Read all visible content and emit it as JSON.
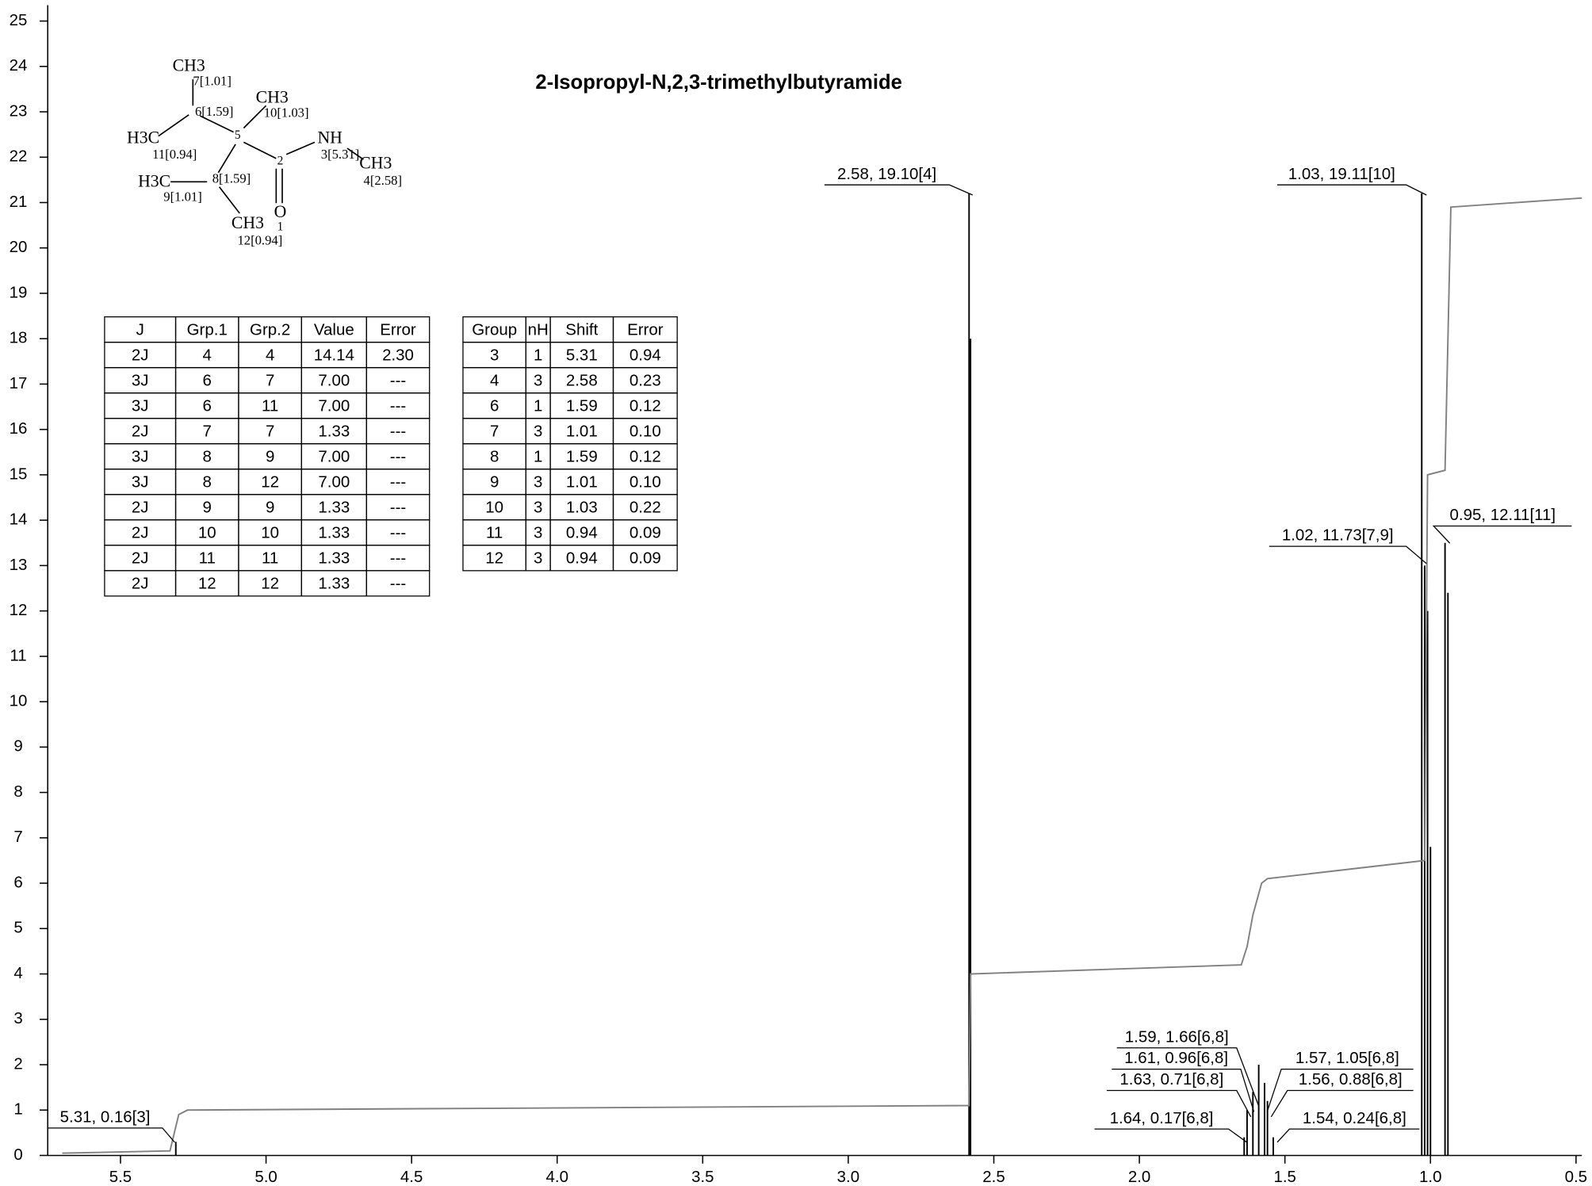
{
  "chart_data": {
    "type": "nmr",
    "title": "2-Isopropyl-N,2,3-trimethylbutyramide",
    "xlim": [
      5.75,
      0.48
    ],
    "ylim": [
      0,
      25.35
    ],
    "xticks": [
      {
        "value": 5.5,
        "label": "5.5"
      },
      {
        "value": 5,
        "label": "5.0"
      },
      {
        "value": 4.5,
        "label": "4.5"
      },
      {
        "value": 4,
        "label": "4.0"
      },
      {
        "value": 3.5,
        "label": "3.5"
      },
      {
        "value": 3,
        "label": "3.0"
      },
      {
        "value": 2.5,
        "label": "2.5"
      },
      {
        "value": 2,
        "label": "2.0"
      },
      {
        "value": 1.5,
        "label": "1.5"
      },
      {
        "value": 1,
        "label": "1.0"
      },
      {
        "value": 0.5,
        "label": "0.5"
      }
    ],
    "yticks": [
      0,
      1,
      2,
      3,
      4,
      5,
      6,
      7,
      8,
      9,
      10,
      11,
      12,
      13,
      14,
      15,
      16,
      17,
      18,
      19,
      20,
      21,
      22,
      23,
      24,
      25
    ],
    "series": [
      {
        "name": "spectrum",
        "color": "#000000",
        "x": [
          5.31,
          2.585,
          2.58,
          1.64,
          1.63,
          1.61,
          1.59,
          1.57,
          1.56,
          1.54,
          1.03,
          1.02,
          1.01,
          1.0,
          0.95,
          0.94
        ],
        "values": [
          0.3,
          21.2,
          18.0,
          0.4,
          1.0,
          1.4,
          2.0,
          1.6,
          1.2,
          0.4,
          21.2,
          13.0,
          12.0,
          6.8,
          13.5,
          12.4
        ]
      },
      {
        "name": "integral",
        "color": "#808080",
        "x": [
          5.7,
          5.33,
          5.3,
          5.27,
          2.585,
          2.58,
          1.65,
          1.63,
          1.61,
          1.58,
          1.56,
          1.02,
          1.01,
          0.95,
          0.94,
          0.93,
          0.48
        ],
        "values": [
          0.05,
          0.1,
          0.9,
          1.0,
          1.1,
          4.0,
          4.2,
          4.6,
          5.3,
          6.0,
          6.1,
          6.5,
          15.0,
          15.1,
          18.0,
          20.9,
          21.1
        ]
      }
    ],
    "annotations": [
      "5.31, 0.16[3]",
      "2.58, 19.10[4]",
      "1.59, 1.66[6,8]",
      "1.61, 0.96[6,8]",
      "1.63, 0.71[6,8]",
      "1.64, 0.17[6,8]",
      "1.57, 1.05[6,8]",
      "1.56, 0.88[6,8]",
      "1.54, 0.24[6,8]",
      "1.03, 19.11[10]",
      "1.02, 11.73[7,9]",
      "0.95, 12.11[11]"
    ],
    "structure": [
      "CH3",
      "7[1.01]",
      "6[1.59]",
      "CH3",
      "10[1.03]",
      "H3C",
      "5",
      "11[0.94]",
      "NH",
      "3[5.31]",
      "CH3",
      "2",
      "4[2.58]",
      "H3C",
      "8[1.59]",
      "9[1.01]",
      "O",
      "CH3",
      "1",
      "12[0.94]"
    ],
    "j_table": {
      "header": [
        "J",
        "Grp.1",
        "Grp.2",
        "Value",
        "Error"
      ],
      "rows": [
        [
          "2J",
          "4",
          "4",
          "14.14",
          "2.30"
        ],
        [
          "3J",
          "6",
          "7",
          "7.00",
          "---"
        ],
        [
          "3J",
          "6",
          "11",
          "7.00",
          "---"
        ],
        [
          "2J",
          "7",
          "7",
          "1.33",
          "---"
        ],
        [
          "3J",
          "8",
          "9",
          "7.00",
          "---"
        ],
        [
          "3J",
          "8",
          "12",
          "7.00",
          "---"
        ],
        [
          "2J",
          "9",
          "9",
          "1.33",
          "---"
        ],
        [
          "2J",
          "10",
          "10",
          "1.33",
          "---"
        ],
        [
          "2J",
          "11",
          "11",
          "1.33",
          "---"
        ],
        [
          "2J",
          "12",
          "12",
          "1.33",
          "---"
        ]
      ]
    },
    "shift_table": {
      "header": [
        "Group",
        "nH",
        "Shift",
        "Error"
      ],
      "rows": [
        [
          "3",
          "1",
          "5.31",
          "0.94"
        ],
        [
          "4",
          "3",
          "2.58",
          "0.23"
        ],
        [
          "6",
          "1",
          "1.59",
          "0.12"
        ],
        [
          "7",
          "3",
          "1.01",
          "0.10"
        ],
        [
          "8",
          "1",
          "1.59",
          "0.12"
        ],
        [
          "9",
          "3",
          "1.01",
          "0.10"
        ],
        [
          "10",
          "3",
          "1.03",
          "0.22"
        ],
        [
          "11",
          "3",
          "0.94",
          "0.09"
        ],
        [
          "12",
          "3",
          "0.94",
          "0.09"
        ]
      ]
    }
  }
}
